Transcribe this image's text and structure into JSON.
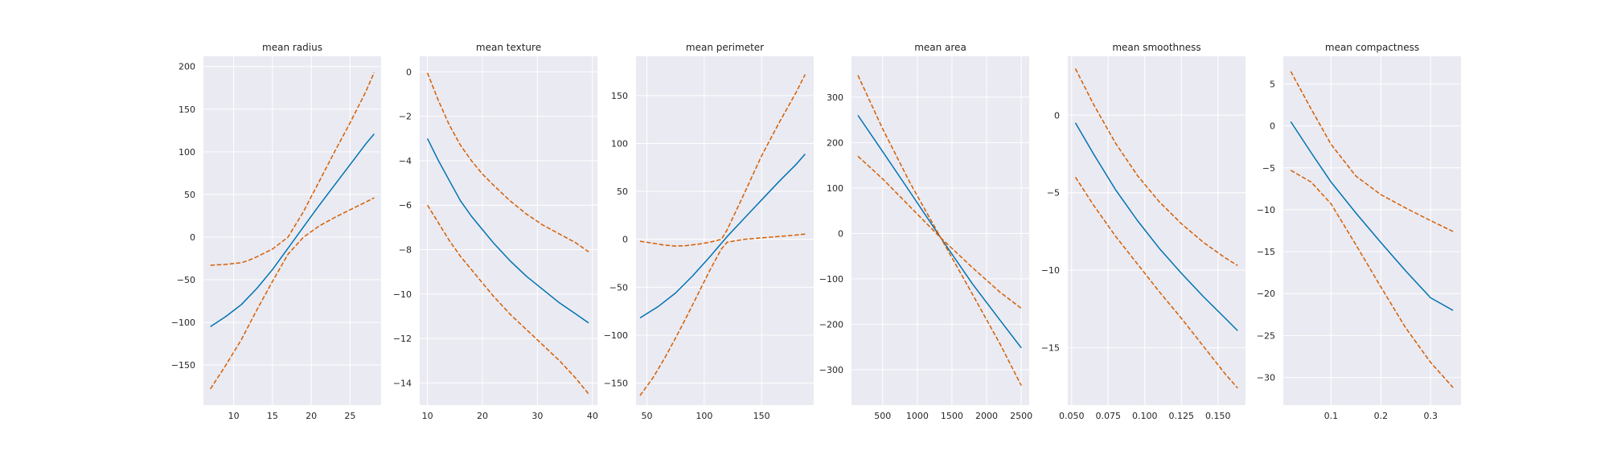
{
  "chart_data": [
    {
      "type": "line",
      "title": "mean radius",
      "xlim": [
        6.1,
        29.0
      ],
      "ylim": [
        -197,
        212
      ],
      "xticks": [
        10,
        15,
        20,
        25
      ],
      "xtick_labels": [
        "10",
        "15",
        "20",
        "25"
      ],
      "yticks": [
        -150,
        -100,
        -50,
        0,
        50,
        100,
        150,
        200
      ],
      "ytick_labels": [
        "−150",
        "−100",
        "−50",
        "0",
        "50",
        "100",
        "150",
        "200"
      ],
      "series": [
        {
          "role": "estimate",
          "color": "#0173b2",
          "style": "solid",
          "x": [
            7,
            9,
            11,
            13,
            15,
            17,
            19,
            21,
            23,
            25,
            27,
            28.1
          ],
          "y": [
            -105,
            -93,
            -79,
            -60,
            -38,
            -13,
            12,
            37,
            61,
            85,
            109,
            121
          ]
        },
        {
          "role": "upper bound",
          "color": "#d55e00",
          "style": "dashed",
          "x": [
            7,
            9,
            11,
            12,
            13,
            15,
            17,
            19,
            21,
            23,
            25,
            27,
            28.1
          ],
          "y": [
            -33,
            -32,
            -30,
            -27,
            -23,
            -14,
            0,
            30,
            65,
            100,
            134,
            170,
            193
          ]
        },
        {
          "role": "lower bound",
          "color": "#d55e00",
          "style": "dashed",
          "x": [
            7,
            9,
            11,
            13,
            15,
            17,
            19,
            21,
            23,
            25,
            27,
            28.1
          ],
          "y": [
            -178,
            -150,
            -120,
            -85,
            -52,
            -20,
            0,
            13,
            23,
            32,
            41,
            46
          ]
        }
      ]
    },
    {
      "type": "line",
      "title": "mean texture",
      "xlim": [
        8.6,
        40.9
      ],
      "ylim": [
        -15.0,
        0.7
      ],
      "xticks": [
        10,
        20,
        30,
        40
      ],
      "xtick_labels": [
        "10",
        "20",
        "30",
        "40"
      ],
      "yticks": [
        -14,
        -12,
        -10,
        -8,
        -6,
        -4,
        -2,
        0
      ],
      "ytick_labels": [
        "−14",
        "−12",
        "−10",
        "−8",
        "−6",
        "−4",
        "−2",
        "0"
      ],
      "series": [
        {
          "role": "estimate",
          "color": "#0173b2",
          "style": "solid",
          "x": [
            10,
            12,
            14,
            16,
            18,
            20,
            22,
            25,
            28,
            31,
            34,
            37,
            39.3
          ],
          "y": [
            -3.0,
            -4.0,
            -4.9,
            -5.8,
            -6.5,
            -7.1,
            -7.7,
            -8.5,
            -9.2,
            -9.8,
            -10.4,
            -10.9,
            -11.3
          ]
        },
        {
          "role": "upper bound",
          "color": "#d55e00",
          "style": "dashed",
          "x": [
            10,
            12,
            14,
            16,
            18,
            20,
            22,
            25,
            28,
            31,
            34,
            37,
            39.3
          ],
          "y": [
            -0.05,
            -1.3,
            -2.4,
            -3.3,
            -4.0,
            -4.6,
            -5.1,
            -5.8,
            -6.4,
            -6.9,
            -7.3,
            -7.7,
            -8.1
          ]
        },
        {
          "role": "lower bound",
          "color": "#d55e00",
          "style": "dashed",
          "x": [
            10,
            12,
            14,
            16,
            18,
            20,
            22,
            25,
            28,
            31,
            34,
            37,
            39.3
          ],
          "y": [
            -6.0,
            -6.8,
            -7.6,
            -8.3,
            -8.9,
            -9.5,
            -10.1,
            -10.9,
            -11.6,
            -12.3,
            -13.0,
            -13.8,
            -14.5
          ]
        }
      ]
    },
    {
      "type": "line",
      "title": "mean perimeter",
      "xlim": [
        40.5,
        195.5
      ],
      "ylim": [
        -173,
        191
      ],
      "xticks": [
        50,
        100,
        150
      ],
      "xtick_labels": [
        "50",
        "100",
        "150"
      ],
      "yticks": [
        -150,
        -100,
        -50,
        0,
        50,
        100,
        150
      ],
      "ytick_labels": [
        "−150",
        "−100",
        "−50",
        "0",
        "50",
        "100",
        "150"
      ],
      "series": [
        {
          "role": "estimate",
          "color": "#0173b2",
          "style": "solid",
          "x": [
            44,
            60,
            75,
            90,
            105,
            120,
            135,
            150,
            165,
            180,
            188
          ],
          "y": [
            -82,
            -70,
            -56,
            -38,
            -18,
            3,
            22,
            41,
            60,
            78,
            89
          ]
        },
        {
          "role": "upper bound",
          "color": "#d55e00",
          "style": "dashed",
          "x": [
            44,
            55,
            65,
            75,
            85,
            95,
            105,
            115,
            120,
            135,
            150,
            165,
            180,
            188
          ],
          "y": [
            -2,
            -4,
            -6,
            -7,
            -6.5,
            -5,
            -3,
            0,
            10,
            48,
            87,
            121,
            153,
            172
          ]
        },
        {
          "role": "lower bound",
          "color": "#d55e00",
          "style": "dashed",
          "x": [
            44,
            55,
            65,
            75,
            85,
            95,
            105,
            115,
            120,
            135,
            150,
            165,
            180,
            188
          ],
          "y": [
            -163,
            -145,
            -125,
            -103,
            -80,
            -56,
            -32,
            -10,
            -3,
            0,
            1.5,
            3,
            4.5,
            5.5
          ]
        }
      ]
    },
    {
      "type": "line",
      "title": "mean area",
      "xlim": [
        50,
        2615
      ],
      "ylim": [
        -378,
        390
      ],
      "xticks": [
        500,
        1000,
        1500,
        2000,
        2500
      ],
      "xtick_labels": [
        "500",
        "1000",
        "1500",
        "2000",
        "2500"
      ],
      "yticks": [
        -300,
        -200,
        -100,
        0,
        100,
        200,
        300
      ],
      "ytick_labels": [
        "−300",
        "−200",
        "−100",
        "0",
        "100",
        "200",
        "300"
      ],
      "series": [
        {
          "role": "estimate",
          "color": "#0173b2",
          "style": "solid",
          "x": [
            143,
            500,
            900,
            1340,
            1800,
            2200,
            2501
          ],
          "y": [
            260,
            180,
            90,
            -10,
            -112,
            -192,
            -252
          ]
        },
        {
          "role": "upper bound",
          "color": "#d55e00",
          "style": "dashed",
          "x": [
            143,
            500,
            900,
            1340,
            1800,
            2200,
            2501
          ],
          "y": [
            348,
            230,
            110,
            -10,
            -135,
            -245,
            -335
          ]
        },
        {
          "role": "lower bound",
          "color": "#d55e00",
          "style": "dashed",
          "x": [
            143,
            500,
            900,
            1340,
            1800,
            2200,
            2501
          ],
          "y": [
            170,
            120,
            58,
            -10,
            -76,
            -130,
            -165
          ]
        }
      ]
    },
    {
      "type": "line",
      "title": "mean smoothness",
      "xlim": [
        0.0474,
        0.1688
      ],
      "ylim": [
        -18.7,
        3.8
      ],
      "xticks": [
        0.05,
        0.075,
        0.1,
        0.125,
        0.15
      ],
      "xtick_labels": [
        "0.050",
        "0.075",
        "0.100",
        "0.125",
        "0.150"
      ],
      "yticks": [
        -15,
        -10,
        -5,
        0
      ],
      "ytick_labels": [
        "−15",
        "−10",
        "−5",
        "0"
      ],
      "series": [
        {
          "role": "estimate",
          "color": "#0173b2",
          "style": "solid",
          "x": [
            0.0526,
            0.065,
            0.08,
            0.095,
            0.11,
            0.125,
            0.14,
            0.155,
            0.1634
          ],
          "y": [
            -0.5,
            -2.5,
            -4.8,
            -6.8,
            -8.6,
            -10.2,
            -11.7,
            -13.1,
            -13.9
          ]
        },
        {
          "role": "upper bound",
          "color": "#d55e00",
          "style": "dashed",
          "x": [
            0.0526,
            0.065,
            0.08,
            0.095,
            0.11,
            0.125,
            0.14,
            0.155,
            0.1634
          ],
          "y": [
            3.0,
            0.7,
            -1.8,
            -3.9,
            -5.6,
            -7.0,
            -8.2,
            -9.2,
            -9.7
          ]
        },
        {
          "role": "lower bound",
          "color": "#d55e00",
          "style": "dashed",
          "x": [
            0.0526,
            0.065,
            0.08,
            0.095,
            0.11,
            0.125,
            0.14,
            0.155,
            0.1634
          ],
          "y": [
            -4.0,
            -5.8,
            -7.8,
            -9.6,
            -11.4,
            -13.1,
            -14.9,
            -16.7,
            -17.6
          ]
        }
      ]
    },
    {
      "type": "line",
      "title": "mean compactness",
      "xlim": [
        0.004,
        0.361
      ],
      "ylim": [
        -33.3,
        8.3
      ],
      "xticks": [
        0.1,
        0.2,
        0.3
      ],
      "xtick_labels": [
        "0.1",
        "0.2",
        "0.3"
      ],
      "yticks": [
        -30,
        -25,
        -20,
        -15,
        -10,
        -5,
        0,
        5
      ],
      "ytick_labels": [
        "−30",
        "−25",
        "−20",
        "−15",
        "−10",
        "−5",
        "0",
        "5"
      ],
      "series": [
        {
          "role": "estimate",
          "color": "#0173b2",
          "style": "solid",
          "x": [
            0.019,
            0.06,
            0.1,
            0.15,
            0.2,
            0.25,
            0.3,
            0.345
          ],
          "y": [
            0.5,
            -3.2,
            -6.7,
            -10.4,
            -13.9,
            -17.3,
            -20.5,
            -22.0
          ]
        },
        {
          "role": "upper bound",
          "color": "#d55e00",
          "style": "dashed",
          "x": [
            0.019,
            0.06,
            0.1,
            0.15,
            0.2,
            0.25,
            0.3,
            0.345
          ],
          "y": [
            6.5,
            2.0,
            -2.2,
            -6.0,
            -8.2,
            -9.8,
            -11.3,
            -12.6
          ]
        },
        {
          "role": "lower bound",
          "color": "#d55e00",
          "style": "dashed",
          "x": [
            0.019,
            0.06,
            0.1,
            0.15,
            0.2,
            0.25,
            0.3,
            0.345
          ],
          "y": [
            -5.3,
            -6.7,
            -9.3,
            -14.2,
            -19.2,
            -24.1,
            -28.2,
            -31.2
          ]
        }
      ]
    }
  ]
}
